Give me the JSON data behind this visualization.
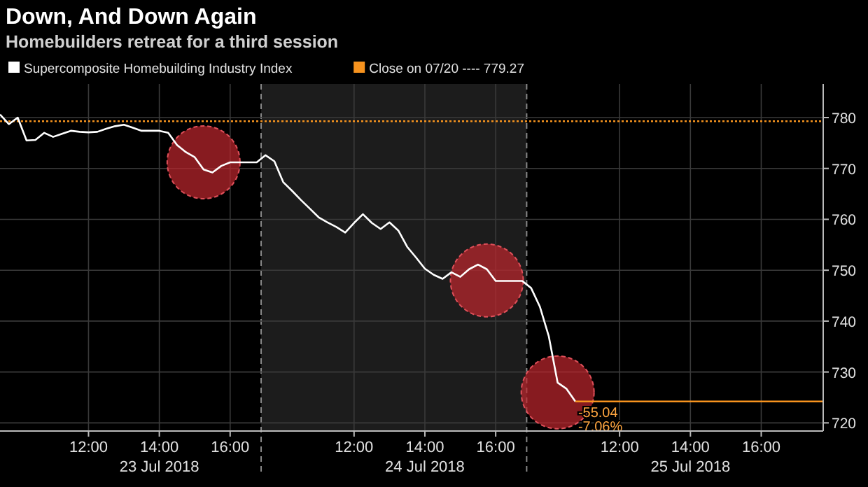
{
  "chart_data": {
    "type": "line",
    "title": "Down, And Down Again",
    "subtitle": "Homebuilders retreat for a third session",
    "categories": [
      null,
      null,
      null,
      null,
      null,
      null,
      null,
      null,
      null,
      null,
      "12:00",
      null,
      null,
      null,
      null,
      null,
      null,
      null,
      "14:00",
      null,
      null,
      null,
      null,
      null,
      null,
      null,
      "16:00",
      null,
      null,
      null,
      null,
      null,
      null,
      null,
      null,
      null,
      null,
      null,
      null,
      null,
      "12:00",
      null,
      null,
      null,
      null,
      null,
      null,
      null,
      "14:00",
      null,
      null,
      null,
      null,
      null,
      null,
      null,
      "16:00",
      null,
      null,
      null,
      null,
      null,
      null,
      null,
      null,
      null,
      null,
      null,
      null,
      null,
      "12:00",
      null,
      null,
      null,
      null,
      null,
      null,
      null,
      "14:00",
      null,
      null,
      null,
      null,
      null,
      null,
      null,
      "16:00",
      null,
      null,
      null,
      null,
      null,
      null,
      null
    ],
    "series": [
      {
        "name": "Supercomposite Homebuilding Industry Index",
        "color": "#ffffff",
        "values": [
          780.6,
          778.7,
          780,
          775.5,
          775.6,
          777,
          776.2,
          776.8,
          777.4,
          777.2,
          777.1,
          777.2,
          777.8,
          778.3,
          778.6,
          778,
          777.4,
          777.4,
          777.4,
          777,
          774.6,
          773.2,
          772.2,
          769.8,
          769.2,
          770.5,
          771.2,
          771.2,
          771.2,
          771.2,
          772.6,
          771.4,
          767.3,
          765.6,
          763.8,
          762.1,
          760.4,
          759.4,
          758.5,
          757.4,
          759.3,
          761,
          759.3,
          758.1,
          759.4,
          757.8,
          754.6,
          752.5,
          750.3,
          749.1,
          748.3,
          749.6,
          748.7,
          750.2,
          751.1,
          750.2,
          747.9,
          747.9,
          747.9,
          747.9,
          746.5,
          742.8,
          737,
          727.9,
          726.7,
          724.2,
          null,
          null,
          null,
          null,
          null,
          null,
          null,
          null,
          null,
          null,
          null,
          null,
          null,
          null,
          null,
          null,
          null,
          null,
          null,
          null,
          null,
          null,
          null,
          null,
          null,
          null,
          null,
          null
        ]
      },
      {
        "color": "#f7931e",
        "values": [
          null,
          null,
          null,
          null,
          null,
          null,
          null,
          null,
          null,
          null,
          null,
          null,
          null,
          null,
          null,
          null,
          null,
          null,
          null,
          null,
          null,
          null,
          null,
          null,
          null,
          null,
          null,
          null,
          null,
          null,
          null,
          null,
          null,
          null,
          null,
          null,
          null,
          null,
          null,
          null,
          null,
          null,
          null,
          null,
          null,
          null,
          null,
          null,
          null,
          null,
          null,
          null,
          null,
          null,
          null,
          null,
          null,
          null,
          null,
          null,
          null,
          null,
          null,
          null,
          null,
          724.2,
          724.2,
          724.2,
          724.2,
          724.2,
          724.2,
          724.2,
          724.2,
          724.2,
          724.2,
          724.2,
          724.2,
          724.2,
          724.2,
          724.2,
          724.2,
          724.2,
          724.2,
          724.2,
          724.2,
          724.2,
          724.2,
          724.2,
          724.2,
          724.2,
          724.2,
          724.2,
          724.2,
          724.2
        ]
      }
    ],
    "ylim": [
      718.4,
      786.6
    ],
    "yticks": [
      720,
      730,
      740,
      750,
      760,
      770,
      780
    ],
    "ref_lines": [
      {
        "axis": "y",
        "value": 779.27,
        "label": "Close on 07/20 ---- 779.27",
        "color": "#f7931e",
        "line_style": "dotted"
      }
    ],
    "annotations": [
      "23 Jul 2018",
      "24 Jul 2018",
      "25 Jul 2018",
      {
        "text": "-55.04",
        "y": 724.2
      },
      {
        "text": "-7.06%",
        "y": 724.2
      }
    ],
    "grid": true,
    "legend": "top left"
  }
}
